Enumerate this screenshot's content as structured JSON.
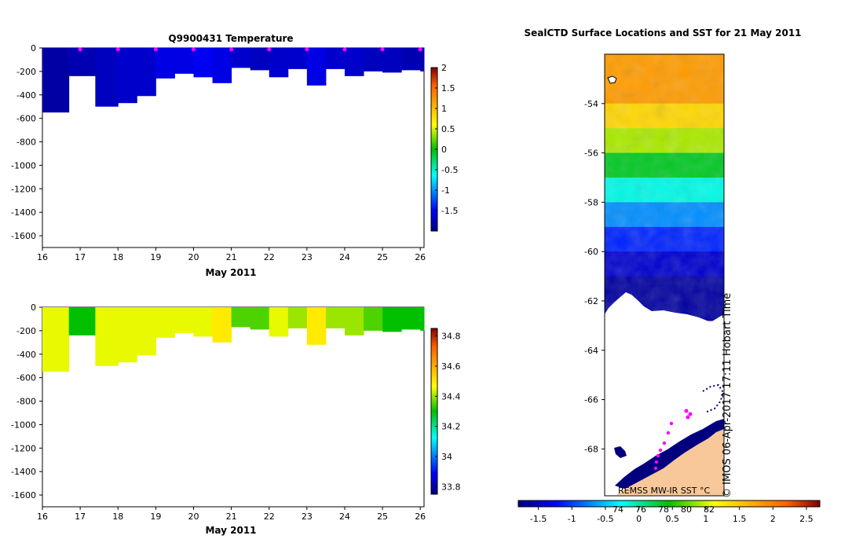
{
  "chart_data": [
    {
      "type": "heatmap",
      "title": "Q9900431  Temperature",
      "xlabel": "May 2011",
      "ylabel": "",
      "xlim": [
        16,
        26.1
      ],
      "ylim": [
        -1700,
        0
      ],
      "x_ticks": [
        "16",
        "17",
        "18",
        "19",
        "20",
        "21",
        "22",
        "23",
        "24",
        "25",
        "26"
      ],
      "y_ticks": [
        "0",
        "-200",
        "-400",
        "-600",
        "-800",
        "-1000",
        "-1200",
        "-1400",
        "-1600"
      ],
      "colorbar": {
        "ticks": [
          "2",
          "1.5",
          "1",
          "0.5",
          "0",
          "-0.5",
          "-1",
          "-1.5"
        ],
        "range": [
          -2,
          2
        ]
      },
      "profiles": [
        {
          "x": 16.0,
          "depth": 550,
          "value": -1.85
        },
        {
          "x": 16.7,
          "depth": 240,
          "value": -1.8
        },
        {
          "x": 17.4,
          "depth": 500,
          "value": -1.75
        },
        {
          "x": 18.0,
          "depth": 470,
          "value": -1.7
        },
        {
          "x": 18.5,
          "depth": 410,
          "value": -1.7
        },
        {
          "x": 19.0,
          "depth": 260,
          "value": -1.6
        },
        {
          "x": 19.5,
          "depth": 220,
          "value": -1.6
        },
        {
          "x": 20.0,
          "depth": 250,
          "value": -1.55
        },
        {
          "x": 20.5,
          "depth": 300,
          "value": -1.6
        },
        {
          "x": 21.0,
          "depth": 170,
          "value": -1.7
        },
        {
          "x": 21.5,
          "depth": 190,
          "value": -1.75
        },
        {
          "x": 22.0,
          "depth": 250,
          "value": -1.7
        },
        {
          "x": 22.5,
          "depth": 180,
          "value": -1.7
        },
        {
          "x": 23.0,
          "depth": 320,
          "value": -1.6
        },
        {
          "x": 23.5,
          "depth": 180,
          "value": -1.7
        },
        {
          "x": 24.0,
          "depth": 240,
          "value": -1.7
        },
        {
          "x": 24.5,
          "depth": 200,
          "value": -1.75
        },
        {
          "x": 25.0,
          "depth": 210,
          "value": -1.75
        },
        {
          "x": 25.5,
          "depth": 190,
          "value": -1.8
        },
        {
          "x": 26.0,
          "depth": 200,
          "value": -1.8
        }
      ],
      "markers_x": [
        17,
        18,
        19,
        20,
        21,
        22,
        23,
        24,
        25,
        26
      ]
    },
    {
      "type": "heatmap",
      "title": "",
      "xlabel": "May 2011",
      "ylabel": "",
      "xlim": [
        16,
        26.1
      ],
      "ylim": [
        -1700,
        0
      ],
      "x_ticks": [
        "16",
        "17",
        "18",
        "19",
        "20",
        "21",
        "22",
        "23",
        "24",
        "25",
        "26"
      ],
      "y_ticks": [
        "0",
        "-200",
        "-400",
        "-600",
        "-800",
        "-1000",
        "-1200",
        "-1400",
        "-1600"
      ],
      "colorbar": {
        "ticks": [
          "34.8",
          "34.6",
          "34.4",
          "34.2",
          "34",
          "33.8"
        ],
        "range": [
          33.75,
          34.85
        ]
      },
      "profiles": [
        {
          "x": 16.0,
          "depth": 550,
          "value": 34.45
        },
        {
          "x": 16.7,
          "depth": 240,
          "value": 34.3
        },
        {
          "x": 17.4,
          "depth": 500,
          "value": 34.45
        },
        {
          "x": 18.0,
          "depth": 470,
          "value": 34.45
        },
        {
          "x": 18.5,
          "depth": 410,
          "value": 34.45
        },
        {
          "x": 19.0,
          "depth": 260,
          "value": 34.45
        },
        {
          "x": 19.5,
          "depth": 220,
          "value": 34.45
        },
        {
          "x": 20.0,
          "depth": 250,
          "value": 34.45
        },
        {
          "x": 20.5,
          "depth": 300,
          "value": 34.5
        },
        {
          "x": 21.0,
          "depth": 170,
          "value": 34.35
        },
        {
          "x": 21.5,
          "depth": 190,
          "value": 34.35
        },
        {
          "x": 22.0,
          "depth": 250,
          "value": 34.45
        },
        {
          "x": 22.5,
          "depth": 180,
          "value": 34.4
        },
        {
          "x": 23.0,
          "depth": 320,
          "value": 34.5
        },
        {
          "x": 23.5,
          "depth": 180,
          "value": 34.4
        },
        {
          "x": 24.0,
          "depth": 240,
          "value": 34.4
        },
        {
          "x": 24.5,
          "depth": 200,
          "value": 34.35
        },
        {
          "x": 25.0,
          "depth": 210,
          "value": 34.3
        },
        {
          "x": 25.5,
          "depth": 190,
          "value": 34.3
        },
        {
          "x": 26.0,
          "depth": 200,
          "value": 34.3
        }
      ]
    },
    {
      "type": "heatmap",
      "title": "SealCTD Surface Locations and SST for 21 May 2011",
      "ylim": [
        -69.9,
        -52.0
      ],
      "y_ticks": [
        "-54",
        "-56",
        "-58",
        "-60",
        "-62",
        "-64",
        "-66",
        "-68"
      ],
      "colorbar": {
        "ticks": [
          "-1.5",
          "-1",
          "-0.5",
          "0",
          "0.5",
          "1",
          "1.5",
          "2",
          "2.5"
        ],
        "range": [
          -1.8,
          2.7
        ]
      },
      "colorbar_sublabels": [
        "74",
        "76",
        "78",
        "80",
        "82"
      ],
      "ice_edge_lat": -62.8,
      "caption": "REMSS MW-IR SST °C",
      "watermark": "© IMOS 06-Apr-2017 17:11 Hobart Time"
    }
  ]
}
